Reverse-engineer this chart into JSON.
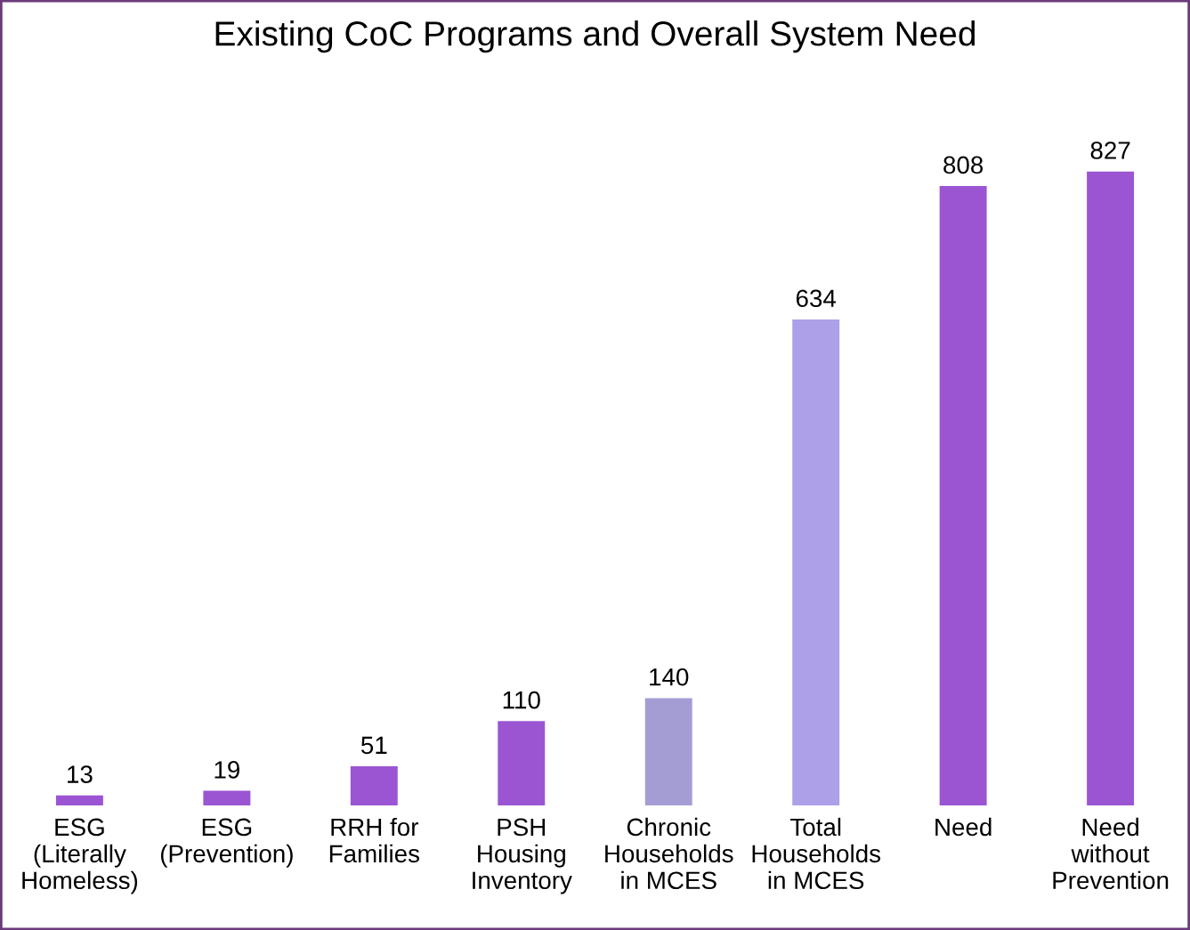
{
  "chart_data": {
    "type": "bar",
    "title": "Existing CoC Programs and Overall System Need",
    "categories": [
      "ESG\n(Literally\nHomeless)",
      "ESG\n(Prevention)",
      "RRH for\nFamilies",
      "PSH\nHousing\nInventory",
      "Chronic\nHouseholds\nin MCES",
      "Total\nHouseholds\nin MCES",
      "Need",
      "Need\nwithout\nPrevention"
    ],
    "values": [
      13,
      19,
      51,
      110,
      140,
      634,
      808,
      827
    ],
    "colors": [
      "#9b55d3",
      "#9b55d3",
      "#9b55d3",
      "#9b55d3",
      "#a49dd4",
      "#ad9fe8",
      "#9b55d3",
      "#9b55d3"
    ],
    "data_labels": true,
    "grid": false
  }
}
